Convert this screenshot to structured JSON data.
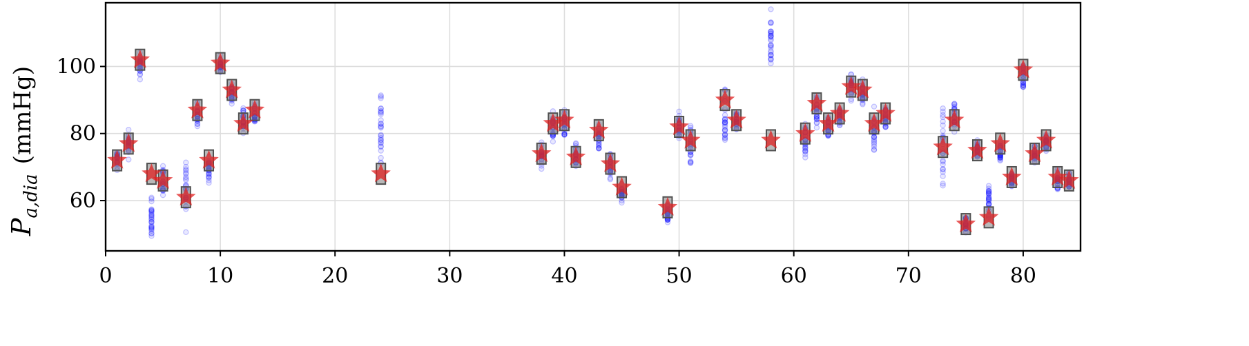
{
  "chart_data": {
    "type": "scatter",
    "title": "",
    "xlabel": "",
    "ylabel": "P_{a,dia} (mmHg)",
    "ylabel_main": "P",
    "ylabel_sub": "a,dia",
    "ylabel_unit": "(mmHg)",
    "xlim": [
      0,
      85
    ],
    "ylim": [
      45,
      119
    ],
    "xticks": [
      0,
      10,
      20,
      30,
      40,
      50,
      60,
      70,
      80
    ],
    "yticks": [
      60,
      80,
      100
    ],
    "grid": true,
    "colors": {
      "samples": "#0000ff",
      "reference": "#e02020",
      "box": "#808080"
    },
    "x": [
      1,
      2,
      3,
      4,
      5,
      7,
      8,
      9,
      10,
      11,
      12,
      13,
      24,
      38,
      39,
      40,
      41,
      43,
      44,
      45,
      49,
      50,
      51,
      54,
      55,
      58,
      61,
      62,
      63,
      64,
      65,
      66,
      67,
      68,
      73,
      74,
      75,
      76,
      77,
      78,
      79,
      80,
      81,
      82,
      83,
      84
    ],
    "reference": [
      72,
      77,
      102,
      68,
      66,
      61,
      87,
      72,
      101,
      93,
      83,
      87,
      68,
      74,
      83,
      84,
      73,
      81,
      71,
      64,
      58,
      82,
      78,
      90,
      84,
      78,
      80,
      89,
      83,
      86,
      94,
      93,
      83,
      86,
      76,
      84,
      53,
      75,
      55,
      77,
      67,
      99,
      74,
      78,
      67,
      66
    ],
    "prediction_center": [
      72,
      77,
      100,
      55,
      66,
      62,
      86,
      70,
      100,
      92,
      84,
      86,
      80,
      74,
      82,
      83,
      73,
      79,
      70,
      62,
      56,
      81,
      76,
      84,
      83,
      108,
      78,
      87,
      82,
      85,
      94,
      92,
      80,
      85,
      78,
      85,
      53,
      75,
      61,
      75,
      66,
      97,
      74,
      77,
      66,
      66
    ],
    "prediction_spread": [
      4,
      4,
      4,
      6,
      5,
      10,
      4,
      4,
      3,
      3,
      4,
      3,
      12,
      4,
      4,
      5,
      4,
      5,
      4,
      3,
      3,
      5,
      7,
      13,
      4,
      8,
      6,
      5,
      4,
      4,
      4,
      4,
      8,
      4,
      12,
      4,
      3,
      3,
      7,
      4,
      3,
      5,
      3,
      3,
      4,
      3
    ]
  }
}
